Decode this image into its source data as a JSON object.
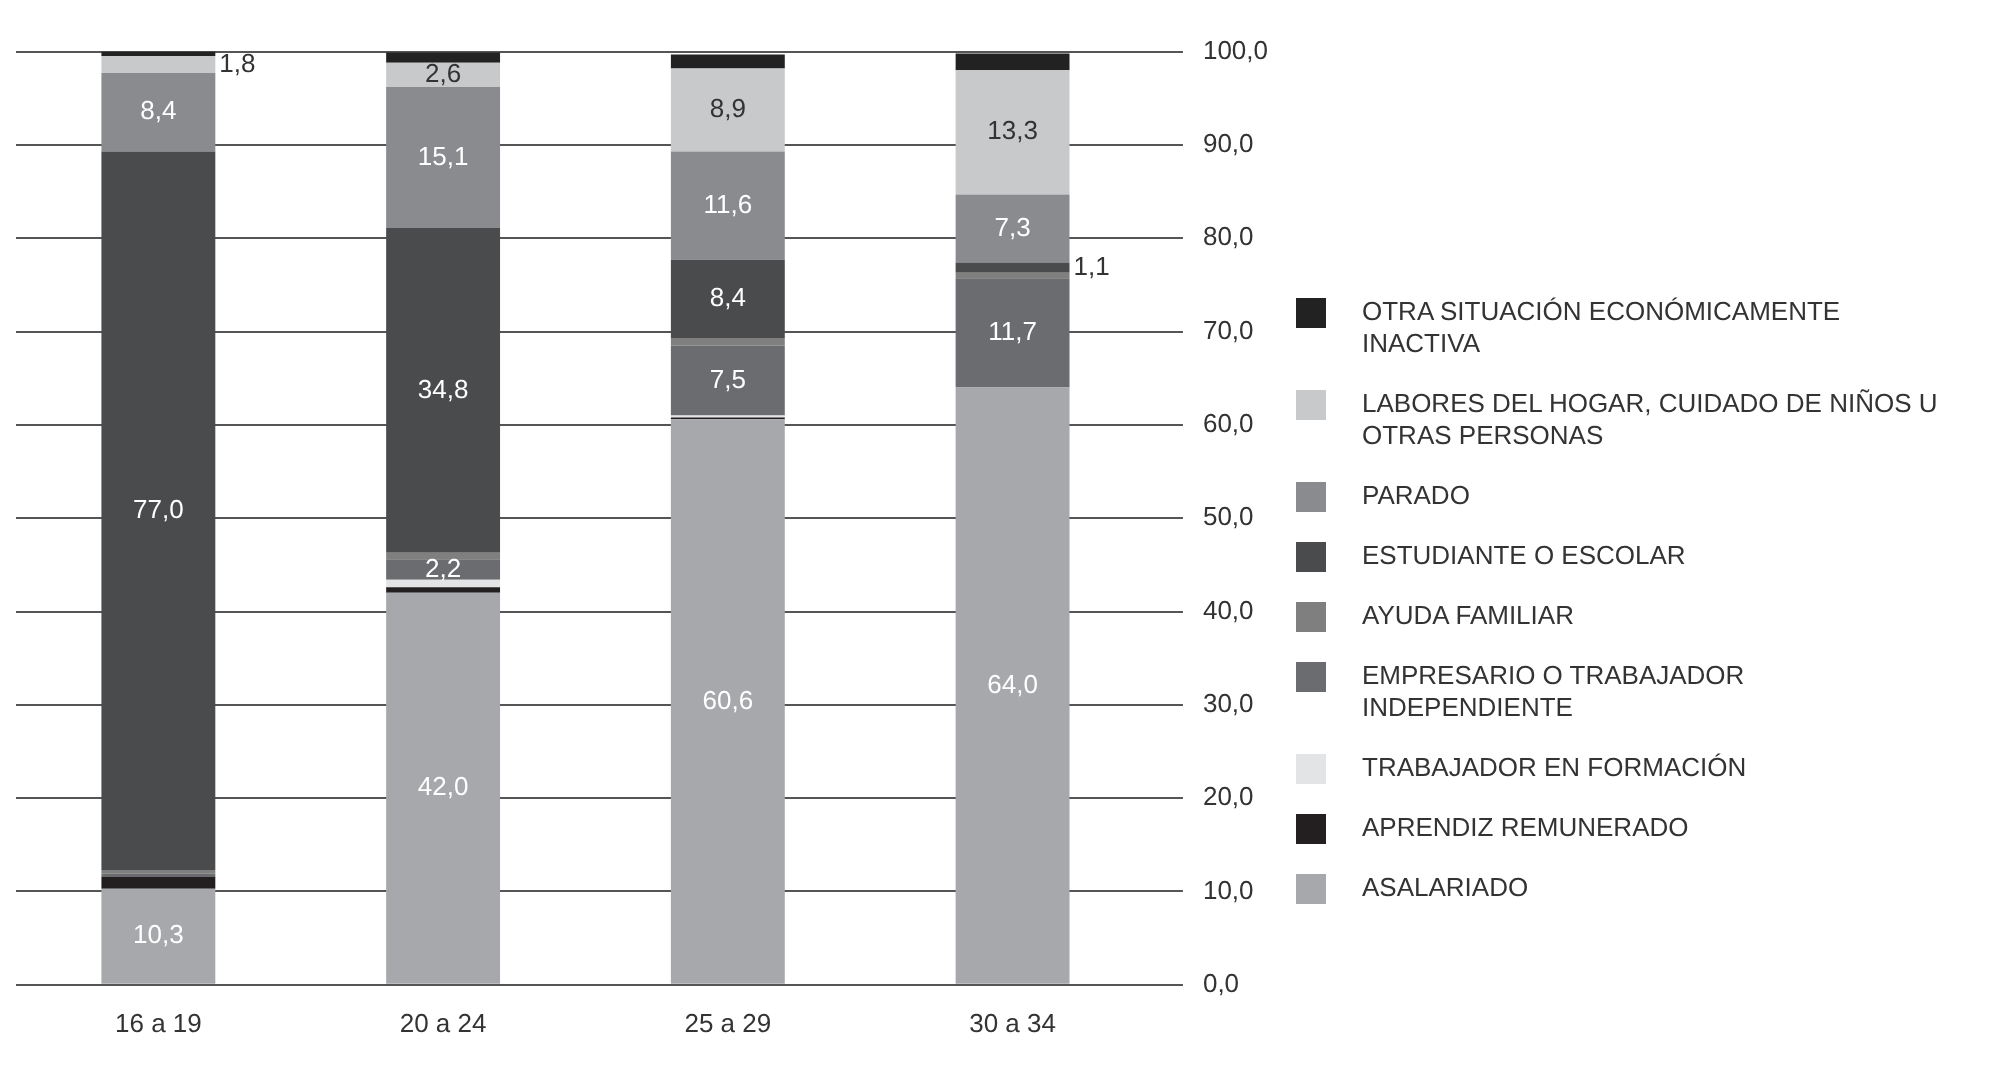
{
  "chart_data": {
    "type": "bar",
    "stacked": true,
    "categories": [
      "16 a 19",
      "20 a 24",
      "25 a 29",
      "30 a 34"
    ],
    "series": [
      {
        "name": "ASALARIADO",
        "color": "#a7a8ab",
        "values": [
          10.3,
          42.0,
          60.6,
          64.0
        ],
        "value_labels": [
          "10,3",
          "42,0",
          "60,6",
          "64,0"
        ]
      },
      {
        "name": "APRENDIZ REMUNERADO",
        "color": "#231f20",
        "values": [
          1.3,
          0.6,
          0.2,
          0
        ],
        "value_labels": [
          null,
          null,
          null,
          null
        ]
      },
      {
        "name": "TRABAJADOR EN FORMACIÓN",
        "color": "#e3e4e5",
        "values": [
          0,
          0.8,
          0.2,
          0
        ],
        "value_labels": [
          null,
          null,
          null,
          null
        ]
      },
      {
        "name": "EMPRESARIO O TRABAJADOR INDEPENDIENTE",
        "color": "#6b6c6f",
        "values": [
          0.3,
          2.2,
          7.5,
          11.7
        ],
        "value_labels": [
          null,
          "2,2",
          "7,5",
          "11,7"
        ]
      },
      {
        "name": "AYUDA FAMILIAR",
        "color": "#7f7f7f",
        "values": [
          0.4,
          0.7,
          0.8,
          0.6
        ],
        "value_labels": [
          null,
          null,
          null,
          null
        ]
      },
      {
        "name": "ESTUDIANTE O ESCOLAR",
        "color": "#4a4b4d",
        "values": [
          77.0,
          34.8,
          8.4,
          1.1
        ],
        "value_labels": [
          "77,0",
          "34,8",
          "8,4",
          "1,1"
        ]
      },
      {
        "name": "PARADO",
        "color": "#8a8b8e",
        "values": [
          8.4,
          15.1,
          11.6,
          7.3
        ],
        "value_labels": [
          "8,4",
          "15,1",
          "11,6",
          "7,3"
        ]
      },
      {
        "name": "LABORES DEL HOGAR, CUIDADO DE NIÑOS U OTRAS PERSONAS",
        "color": "#c8c9cb",
        "values": [
          1.8,
          2.6,
          8.9,
          13.3
        ],
        "value_labels": [
          "1,8",
          "2,6",
          "8,9",
          "13,3"
        ]
      },
      {
        "name": "OTRA SITUACIÓN ECONÓMICAMENTE INACTIVA",
        "color": "#222222",
        "values": [
          0.5,
          1.1,
          1.5,
          1.8
        ],
        "value_labels": [
          null,
          null,
          null,
          null
        ]
      }
    ],
    "ylim": [
      0,
      100
    ],
    "yticks": [
      {
        "value": 0,
        "label": "0,0"
      },
      {
        "value": 10,
        "label": "10,0"
      },
      {
        "value": 20,
        "label": "20,0"
      },
      {
        "value": 30,
        "label": "30,0"
      },
      {
        "value": 40,
        "label": "40,0"
      },
      {
        "value": 50,
        "label": "50,0"
      },
      {
        "value": 60,
        "label": "60,0"
      },
      {
        "value": 70,
        "label": "70,0"
      },
      {
        "value": 80,
        "label": "80,0"
      },
      {
        "value": 90,
        "label": "90,0"
      },
      {
        "value": 100,
        "label": "100,0"
      }
    ],
    "grid": "y",
    "legend": "right"
  }
}
